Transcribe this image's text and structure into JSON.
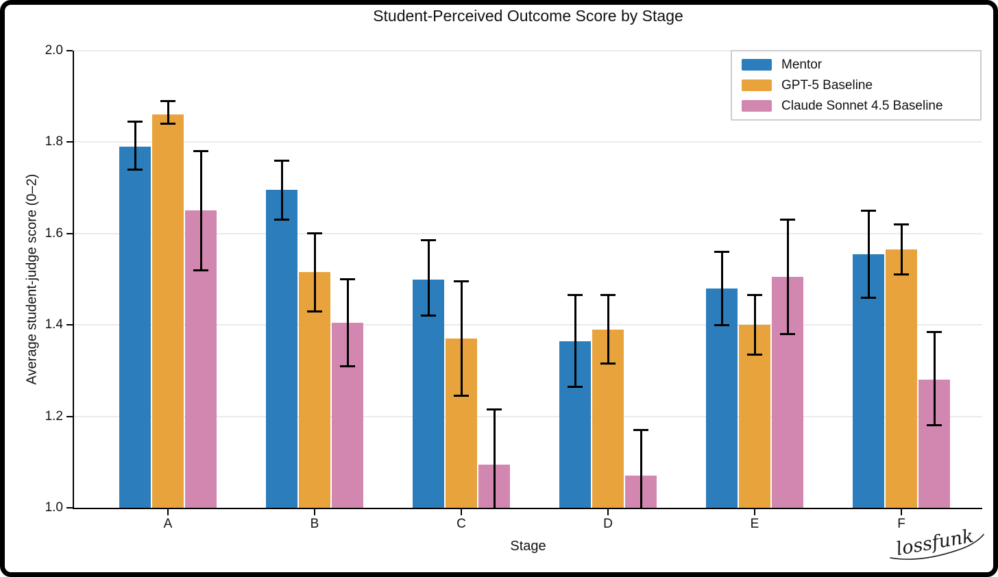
{
  "signature": {
    "text": "lossfunk"
  },
  "chart_data": {
    "type": "bar",
    "title": "Student-Perceived Outcome Score by Stage",
    "xlabel": "Stage",
    "ylabel": "Average student-judge score (0–2)",
    "categories": [
      "A",
      "B",
      "C",
      "D",
      "E",
      "F"
    ],
    "ylim": [
      1.0,
      2.0
    ],
    "yticks": [
      1.0,
      1.2,
      1.4,
      1.6,
      1.8,
      2.0
    ],
    "grid": "horizontal-light-gray",
    "legend_position": "upper right",
    "error_bars": "black, capped, clipped at y=1.0 for Claude C and D",
    "series": [
      {
        "name": "Mentor",
        "color": "#2b7ebb",
        "values": [
          1.79,
          1.695,
          1.5,
          1.365,
          1.48,
          1.555
        ],
        "err_low": [
          1.74,
          1.63,
          1.42,
          1.265,
          1.4,
          1.46
        ],
        "err_high": [
          1.845,
          1.76,
          1.585,
          1.465,
          1.56,
          1.65
        ]
      },
      {
        "name": "GPT-5 Baseline",
        "color": "#e8a33c",
        "values": [
          1.86,
          1.515,
          1.37,
          1.39,
          1.4,
          1.565
        ],
        "err_low": [
          1.84,
          1.43,
          1.245,
          1.315,
          1.335,
          1.51
        ],
        "err_high": [
          1.89,
          1.6,
          1.495,
          1.465,
          1.465,
          1.62
        ]
      },
      {
        "name": "Claude Sonnet 4.5 Baseline",
        "color": "#d287b1",
        "values": [
          1.65,
          1.405,
          1.095,
          1.07,
          1.505,
          1.28
        ],
        "err_low": [
          1.52,
          1.31,
          0.98,
          0.97,
          1.38,
          1.18
        ],
        "err_high": [
          1.78,
          1.5,
          1.215,
          1.17,
          1.63,
          1.385
        ]
      }
    ]
  }
}
